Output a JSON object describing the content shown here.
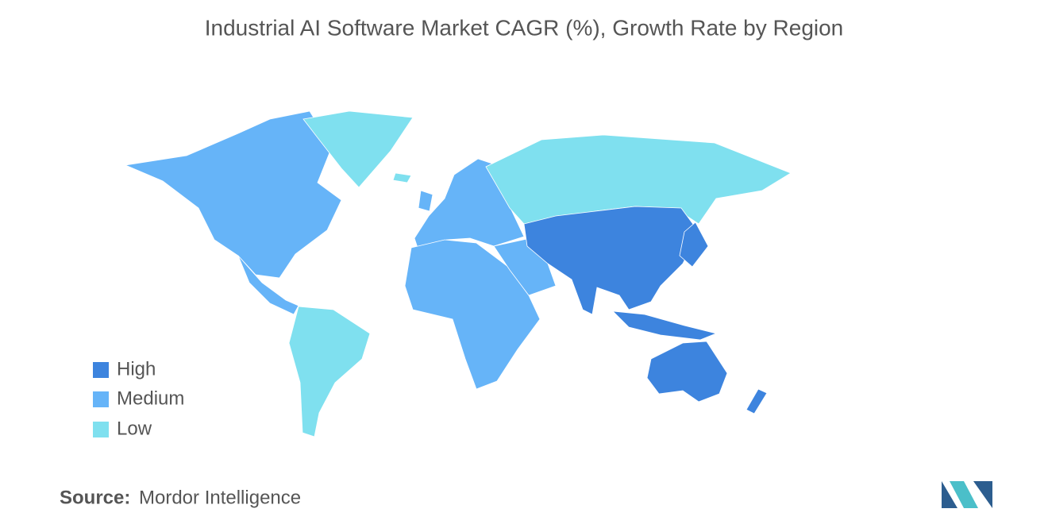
{
  "title": "Industrial AI Software Market CAGR (%), Growth Rate by Region",
  "legend": {
    "items": [
      {
        "label": "High",
        "color": "#3d84de"
      },
      {
        "label": "Medium",
        "color": "#66b4f8"
      },
      {
        "label": "Low",
        "color": "#7fe0ef"
      }
    ]
  },
  "source": {
    "label": "Source:",
    "text": "Mordor Intelligence"
  }
}
